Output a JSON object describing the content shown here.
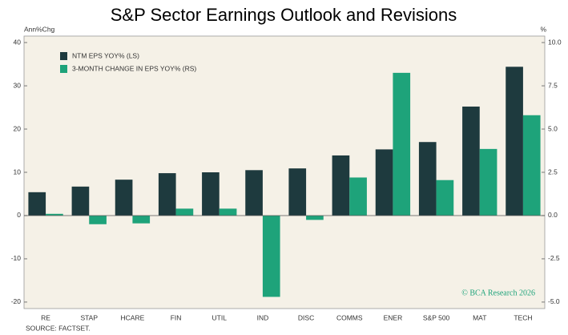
{
  "chart_data": {
    "type": "bar",
    "title": "S&P Sector Earnings Outlook and Revisions",
    "y_label": "Ann%Chg",
    "y2_label": "%",
    "source": "SOURCE: FACTSET.",
    "annotation": "© BCA Research 2026",
    "categories": [
      "RE",
      "STAP",
      "HCARE",
      "FIN",
      "UTIL",
      "IND",
      "DISC",
      "COMMS",
      "ENER",
      "S&P 500",
      "MAT",
      "TECH"
    ],
    "series": [
      {
        "name": "NTM EPS YOY% (LS)",
        "color": "#1e3a3e",
        "values": [
          5.4,
          6.7,
          8.3,
          9.8,
          10.0,
          10.5,
          10.9,
          13.9,
          15.3,
          17.0,
          25.2,
          34.4
        ]
      },
      {
        "name": "3-MONTH CHANGE IN EPS YOY% (RS)",
        "color": "#1ea37a",
        "axis": "y2",
        "values": [
          0.1,
          -0.5,
          -0.45,
          0.4,
          0.4,
          -4.7,
          -0.25,
          2.2,
          8.25,
          2.05,
          3.85,
          5.8
        ]
      }
    ],
    "ylim": [
      -21.5,
      41.5
    ],
    "yticks": [
      -20,
      -10,
      0,
      10,
      20,
      30,
      40
    ],
    "y2lim": [
      -5.375,
      10.375
    ],
    "y2ticks": [
      {
        "value": -5,
        "label": "-5.0"
      },
      -2.5,
      {
        "value": 0,
        "label": "0.0"
      },
      2.5,
      {
        "value": 5,
        "label": "5.0"
      },
      7.5,
      {
        "value": 10,
        "label": "10.0"
      }
    ]
  }
}
